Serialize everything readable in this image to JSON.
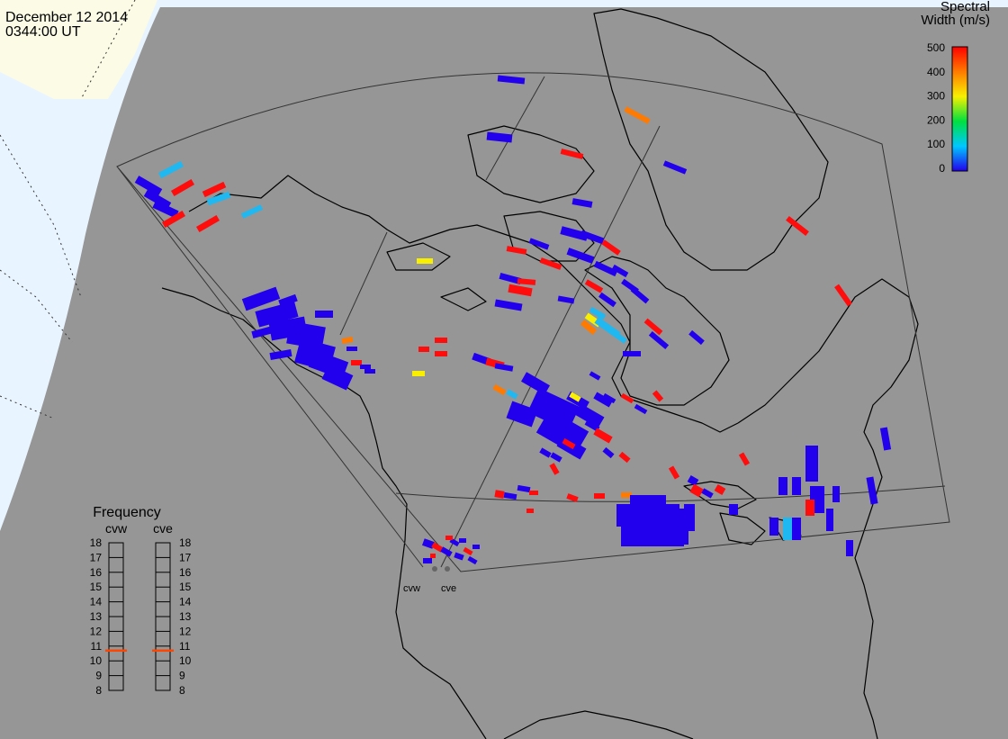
{
  "header": {
    "date": "December 12 2014",
    "time": "0344:00 UT"
  },
  "colorbar": {
    "title_line1": "Spectral",
    "title_line2": "Width (m/s)",
    "ticks": [
      "500",
      "400",
      "300",
      "200",
      "100",
      "0"
    ],
    "min": 0,
    "max": 500
  },
  "frequency_panel": {
    "title": "Frequency",
    "radars": [
      {
        "name": "cvw",
        "value": 10.7
      },
      {
        "name": "cve",
        "value": 10.7
      }
    ],
    "scale": [
      "18",
      "17",
      "16",
      "15",
      "14",
      "13",
      "12",
      "11",
      "10",
      "9",
      "8"
    ],
    "min": 8,
    "max": 18,
    "marker_color": "#ff4500"
  },
  "radars": [
    {
      "label": "cvw"
    },
    {
      "label": "cve"
    }
  ],
  "colors": {
    "background": "#969696",
    "ocean": "#e8f4ff",
    "ice": "#fbfbe6",
    "coast": "#000000",
    "fov": "#333333",
    "blue": "#2200ee",
    "cyan": "#1fb8f0",
    "yellow": "#f8f000",
    "orange": "#ff7a00",
    "red": "#ff0d0d"
  }
}
